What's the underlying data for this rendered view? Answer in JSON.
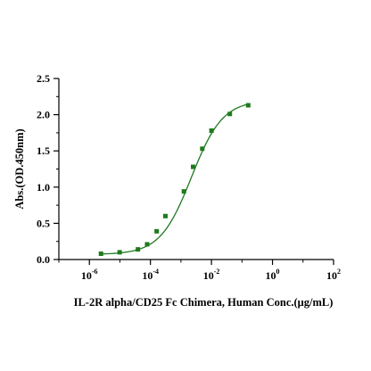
{
  "chart_data": {
    "type": "scatter",
    "xlabel": "IL-2R alpha/CD25 Fc Chimera, Human Conc.(μg/mL)",
    "ylabel": "Abs.(OD.450nm)",
    "x_scale": "log",
    "xlim": [
      1e-07,
      100
    ],
    "ylim": [
      0,
      2.5
    ],
    "x_ticks": [
      {
        "value": 1e-06,
        "base": "10",
        "exp": "-6"
      },
      {
        "value": 0.0001,
        "base": "10",
        "exp": "-4"
      },
      {
        "value": 0.01,
        "base": "10",
        "exp": "-2"
      },
      {
        "value": 1,
        "base": "10",
        "exp": "0"
      },
      {
        "value": 100,
        "base": "10",
        "exp": "2"
      }
    ],
    "y_ticks": [
      "0.0",
      "0.5",
      "1.0",
      "1.5",
      "2.0",
      "2.5"
    ],
    "grid": false,
    "marker_color": "#1f7a1f",
    "line_color": "#1f7a1f",
    "series": [
      {
        "x": [
          2.4e-06,
          9.8e-06,
          3.9e-05,
          7.8e-05,
          0.00016,
          0.00031,
          0.00125,
          0.0025,
          0.005,
          0.01,
          0.04,
          0.16
        ],
        "y": [
          0.08,
          0.1,
          0.14,
          0.21,
          0.39,
          0.6,
          0.94,
          1.28,
          1.53,
          1.78,
          2.01,
          2.13
        ]
      }
    ],
    "fit": {
      "model": "4PL",
      "bottom": 0.07,
      "top": 2.2,
      "ec50": 0.0022,
      "hill": 0.85
    }
  }
}
